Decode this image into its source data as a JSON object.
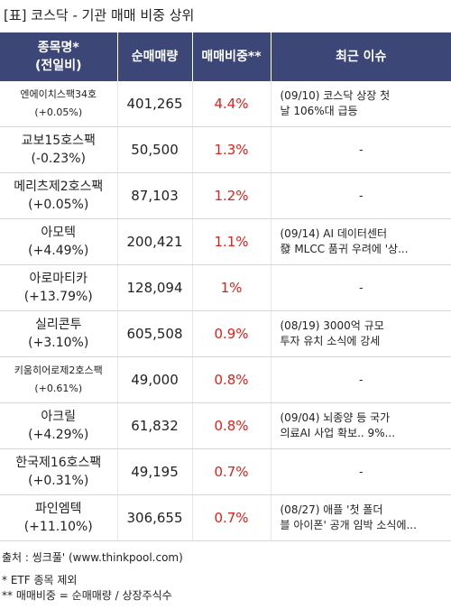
{
  "header": {
    "title": "[표] 코스닥 - 기관 매매 비중 상위"
  },
  "table": {
    "columns": [
      [
        "종목명*",
        "(전일비)"
      ],
      [
        "순매매량"
      ],
      [
        "매매비중**"
      ],
      [
        "최근 이슈"
      ]
    ],
    "rows": [
      {
        "name": "엔에이치스팩34호",
        "change": "(+0.05%)",
        "volume": "401,265",
        "ratio": "4.4%",
        "issue": [
          "(09/10) 코스닥 상장 첫",
          "날 106%대 급등"
        ]
      },
      {
        "name": "교보15호스팩",
        "change": "(-0.23%)",
        "volume": "50,500",
        "ratio": "1.3%",
        "issue": [
          "-"
        ]
      },
      {
        "name": "메리츠제2호스팩",
        "change": "(+0.05%)",
        "volume": "87,103",
        "ratio": "1.2%",
        "issue": [
          "-"
        ]
      },
      {
        "name": "아모텍",
        "change": "(+4.49%)",
        "volume": "200,421",
        "ratio": "1.1%",
        "issue": [
          "(09/14) AI 데이터센터",
          "發 MLCC 품귀 우려에 '상..."
        ]
      },
      {
        "name": "아로마티카",
        "change": "(+13.79%)",
        "volume": "128,094",
        "ratio": "1%",
        "issue": [
          "-"
        ]
      },
      {
        "name": "실리콘투",
        "change": "(+3.10%)",
        "volume": "605,508",
        "ratio": "0.9%",
        "issue": [
          "(08/19) 3000억 규모",
          "투자 유치 소식에 강세"
        ]
      },
      {
        "name": "키움히어로제2호스팩",
        "change": "(+0.61%)",
        "volume": "49,000",
        "ratio": "0.8%",
        "issue": [
          "-"
        ]
      },
      {
        "name": "아크릴",
        "change": "(+4.29%)",
        "volume": "61,832",
        "ratio": "0.8%",
        "issue": [
          "(09/04) 뇌종양 등 국가",
          "의료AI 사업 확보.. 9%..."
        ]
      },
      {
        "name": "한국제16호스팩",
        "change": "(+0.31%)",
        "volume": "49,195",
        "ratio": "0.7%",
        "issue": [
          "-"
        ]
      },
      {
        "name": "파인엠텍",
        "change": "(+11.10%)",
        "volume": "306,655",
        "ratio": "0.7%",
        "issue": [
          "(08/27) 애플 '첫 폴더",
          "블 아이폰' 공개 임박 소식에..."
        ]
      }
    ]
  },
  "footer": {
    "source": "출처 : 씽크풀' (www.thinkpool.com)",
    "notes": [
      "* ETF 종목 제외",
      "** 매매비중 = 순매매량 / 상장주식수"
    ]
  }
}
